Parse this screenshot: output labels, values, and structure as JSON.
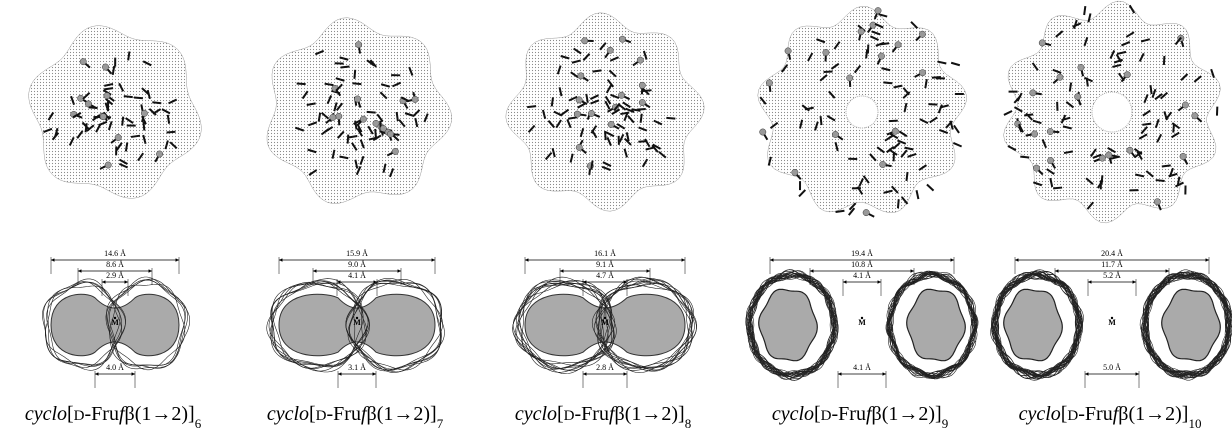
{
  "panels": [
    {
      "outer": "14.6 Å",
      "middle": "8.6 Å",
      "inner": "2.9 Å",
      "bottom": "4.0 Å",
      "center": "M",
      "caption": [
        "cyclo",
        "[",
        "D",
        "-Fru",
        "f",
        "β(1→2)]",
        "6"
      ]
    },
    {
      "outer": "15.9 Å",
      "middle": "9.0 Å",
      "inner": "4.1 Å",
      "bottom": "3.1 Å",
      "center": "M",
      "caption": [
        "cyclo",
        "[",
        "D",
        "-Fru",
        "f",
        "β(1→2)]",
        "7"
      ]
    },
    {
      "outer": "16.1 Å",
      "middle": "9.1 Å",
      "inner": "4.7 Å",
      "bottom": "2.8 Å",
      "center": "M",
      "caption": [
        "cyclo",
        "[",
        "D",
        "-Fru",
        "f",
        "β(1→2)]",
        "8"
      ]
    },
    {
      "outer": "19.4 Å",
      "middle": "10.8 Å",
      "inner": "4.1 Å",
      "bottom": "4.1 Å",
      "center": "M",
      "caption": [
        "cyclo",
        "[",
        "D",
        "-Fru",
        "f",
        "β(1→2)]",
        "9"
      ]
    },
    {
      "outer": "20.4 Å",
      "middle": "11.7 Å",
      "inner": "5.2 Å",
      "bottom": "5.0 Å",
      "center": "M",
      "caption": [
        "cyclo",
        "[",
        "D",
        "-Fru",
        "f",
        "β(1→2)]",
        "10"
      ]
    }
  ]
}
